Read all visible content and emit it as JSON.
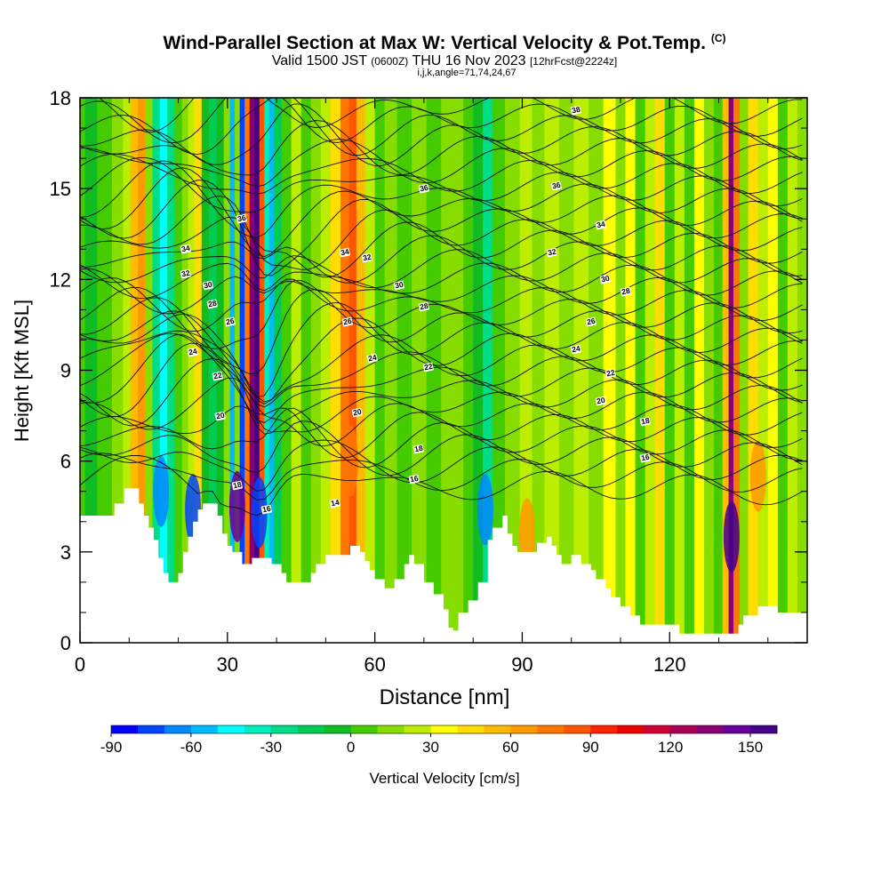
{
  "title": {
    "main": "Wind-Parallel Section at Max W: Vertical Velocity & Pot.Temp.",
    "copyright": "(C)",
    "valid_prefix": "Valid 1500 JST",
    "valid_utc": "(0600Z)",
    "valid_date": "THU 16 Nov 2023",
    "forecast": "[12hrFcst@2224z]",
    "params": "i,j,k,angle=71,74,24,67"
  },
  "chart_data": {
    "type": "heatmap",
    "xlabel": "Distance [nm]",
    "ylabel": "Height [Kft MSL]",
    "xlim": [
      0,
      148
    ],
    "ylim": [
      0,
      18
    ],
    "x_ticks": [
      0,
      30,
      60,
      90,
      120
    ],
    "y_ticks": [
      0,
      3,
      6,
      9,
      12,
      15,
      18
    ],
    "grid": false,
    "colorbar": {
      "label": "Vertical Velocity [cm/s]",
      "range": [
        -90,
        160
      ],
      "tick_values": [
        -90,
        -60,
        -30,
        0,
        30,
        60,
        90,
        120,
        150
      ],
      "tick_labels": [
        "-90",
        "-60",
        "-30",
        "0",
        "30",
        "60",
        "90",
        "120",
        "150"
      ],
      "colors": [
        "#0000ff",
        "#0044ff",
        "#0088ff",
        "#00bbff",
        "#00ffff",
        "#00eebb",
        "#00dd88",
        "#00cc55",
        "#11bb22",
        "#44cc00",
        "#88dd00",
        "#bbee00",
        "#ffff00",
        "#ffdd00",
        "#ffbb00",
        "#ff9900",
        "#ff7700",
        "#ff5500",
        "#ff2200",
        "#ee0000",
        "#cc0033",
        "#aa0055",
        "#880077",
        "#660099",
        "#440088"
      ]
    },
    "terrain_kft": [
      [
        0,
        4.2
      ],
      [
        6,
        4.2
      ],
      [
        7,
        4.6
      ],
      [
        9,
        5.1
      ],
      [
        11,
        5.1
      ],
      [
        12,
        4.6
      ],
      [
        13,
        4.2
      ],
      [
        14,
        3.8
      ],
      [
        15,
        3.4
      ],
      [
        16,
        2.8
      ],
      [
        17,
        2.3
      ],
      [
        18,
        2.0
      ],
      [
        20,
        2.3
      ],
      [
        21,
        3.0
      ],
      [
        22,
        3.5
      ],
      [
        23,
        4.0
      ],
      [
        24,
        4.4
      ],
      [
        25,
        4.6
      ],
      [
        27,
        4.6
      ],
      [
        28,
        4.2
      ],
      [
        29,
        3.6
      ],
      [
        30,
        3.2
      ],
      [
        31,
        3.0
      ],
      [
        33,
        2.6
      ],
      [
        35,
        2.8
      ],
      [
        37,
        2.8
      ],
      [
        39,
        2.6
      ],
      [
        41,
        2.3
      ],
      [
        42,
        2.0
      ],
      [
        46,
        2.0
      ],
      [
        47,
        2.3
      ],
      [
        48,
        2.6
      ],
      [
        50,
        2.9
      ],
      [
        53,
        2.9
      ],
      [
        55,
        3.2
      ],
      [
        57,
        3.0
      ],
      [
        58,
        2.7
      ],
      [
        59,
        2.4
      ],
      [
        60,
        2.1
      ],
      [
        62,
        1.8
      ],
      [
        64,
        2.1
      ],
      [
        66,
        2.6
      ],
      [
        67,
        2.9
      ],
      [
        68,
        2.6
      ],
      [
        70,
        2.0
      ],
      [
        72,
        1.6
      ],
      [
        74,
        1.1
      ],
      [
        75,
        0.5
      ],
      [
        76,
        0.4
      ],
      [
        77,
        1.0
      ],
      [
        79,
        1.4
      ],
      [
        81,
        2.0
      ],
      [
        83,
        3.4
      ],
      [
        84,
        3.8
      ],
      [
        86,
        4.2
      ],
      [
        87,
        3.6
      ],
      [
        88,
        3.2
      ],
      [
        89,
        3.0
      ],
      [
        92,
        3.0
      ],
      [
        93,
        3.3
      ],
      [
        95,
        3.5
      ],
      [
        96,
        3.2
      ],
      [
        97,
        2.9
      ],
      [
        98,
        2.6
      ],
      [
        100,
        2.9
      ],
      [
        102,
        2.6
      ],
      [
        104,
        2.4
      ],
      [
        105,
        2.1
      ],
      [
        107,
        1.8
      ],
      [
        108,
        1.5
      ],
      [
        110,
        1.2
      ],
      [
        112,
        0.9
      ],
      [
        114,
        0.6
      ],
      [
        120,
        0.6
      ],
      [
        122,
        0.3
      ],
      [
        133,
        0.3
      ],
      [
        134,
        0.6
      ],
      [
        135,
        0.9
      ],
      [
        137,
        0.9
      ],
      [
        138,
        1.2
      ],
      [
        141,
        1.2
      ],
      [
        142,
        1.0
      ],
      [
        148,
        1.0
      ]
    ],
    "vertical_velocity_columns_cm_s": [
      [
        0,
        0
      ],
      [
        2,
        -5
      ],
      [
        5,
        0
      ],
      [
        8,
        10
      ],
      [
        9.5,
        20
      ],
      [
        11,
        55
      ],
      [
        12.5,
        60
      ],
      [
        14,
        10
      ],
      [
        15.5,
        -25
      ],
      [
        17,
        -45
      ],
      [
        18.5,
        -30
      ],
      [
        20,
        5
      ],
      [
        21.5,
        15
      ],
      [
        22.5,
        20
      ],
      [
        24,
        40
      ],
      [
        25.5,
        -10
      ],
      [
        27,
        -20
      ],
      [
        28.5,
        -10
      ],
      [
        30,
        10
      ],
      [
        31,
        -55
      ],
      [
        32,
        15
      ],
      [
        33,
        -75
      ],
      [
        34,
        70
      ],
      [
        35,
        135
      ],
      [
        36,
        160
      ],
      [
        37,
        80
      ],
      [
        38,
        -35
      ],
      [
        39,
        -55
      ],
      [
        40,
        -20
      ],
      [
        42,
        5
      ],
      [
        44,
        20
      ],
      [
        46,
        5
      ],
      [
        48,
        10
      ],
      [
        50,
        20
      ],
      [
        52,
        40
      ],
      [
        54,
        70
      ],
      [
        55.5,
        85
      ],
      [
        57,
        55
      ],
      [
        59,
        20
      ],
      [
        61,
        5
      ],
      [
        63,
        15
      ],
      [
        66,
        5
      ],
      [
        69,
        10
      ],
      [
        72,
        5
      ],
      [
        75,
        10
      ],
      [
        77,
        15
      ],
      [
        79,
        5
      ],
      [
        81,
        -10
      ],
      [
        83,
        -25
      ],
      [
        85,
        0
      ],
      [
        88,
        10
      ],
      [
        91,
        25
      ],
      [
        93,
        15
      ],
      [
        96,
        20
      ],
      [
        99,
        10
      ],
      [
        102,
        25
      ],
      [
        105,
        10
      ],
      [
        108,
        30
      ],
      [
        110,
        15
      ],
      [
        112,
        35
      ],
      [
        114,
        5
      ],
      [
        116,
        20
      ],
      [
        118,
        40
      ],
      [
        120,
        5
      ],
      [
        122,
        25
      ],
      [
        124,
        0
      ],
      [
        126,
        30
      ],
      [
        128,
        10
      ],
      [
        130,
        5
      ],
      [
        131.5,
        55
      ],
      [
        132.5,
        130
      ],
      [
        133.5,
        70
      ],
      [
        135,
        15
      ],
      [
        137,
        40
      ],
      [
        139,
        20
      ],
      [
        141,
        30
      ],
      [
        143,
        0
      ],
      [
        145,
        25
      ],
      [
        147,
        15
      ]
    ],
    "low_level_updrafts": [
      {
        "x": 32,
        "z": 4.5,
        "w": 140
      },
      {
        "x": 55,
        "z": 6.0,
        "w": 70
      },
      {
        "x": 91,
        "z": 3.6,
        "w": 60
      },
      {
        "x": 132.6,
        "z": 3.5,
        "w": 150
      },
      {
        "x": 138,
        "z": 5.5,
        "w": 60
      }
    ],
    "low_level_downdrafts": [
      {
        "x": 16.5,
        "z": 5.0,
        "w": -70
      },
      {
        "x": 23,
        "z": 4.4,
        "w": -80
      },
      {
        "x": 36.5,
        "z": 4.3,
        "w": -75
      },
      {
        "x": 82.5,
        "z": 4.4,
        "w": -65
      }
    ],
    "potential_temperature_contours": {
      "units": "C",
      "levels": [
        14,
        16,
        18,
        20,
        22,
        24,
        26,
        28,
        30,
        32,
        34,
        36,
        38
      ],
      "labels": [
        {
          "text": "34",
          "x": 21.5,
          "y": 13.0
        },
        {
          "text": "32",
          "x": 21.5,
          "y": 12.2
        },
        {
          "text": "30",
          "x": 26,
          "y": 11.8
        },
        {
          "text": "28",
          "x": 27,
          "y": 11.2
        },
        {
          "text": "26",
          "x": 30.5,
          "y": 10.6
        },
        {
          "text": "24",
          "x": 23,
          "y": 9.6
        },
        {
          "text": "22",
          "x": 28,
          "y": 8.8
        },
        {
          "text": "20",
          "x": 28.5,
          "y": 7.5
        },
        {
          "text": "18",
          "x": 32,
          "y": 5.2
        },
        {
          "text": "16",
          "x": 38,
          "y": 4.4
        },
        {
          "text": "36",
          "x": 33,
          "y": 14.0
        },
        {
          "text": "34",
          "x": 54,
          "y": 12.9
        },
        {
          "text": "32",
          "x": 58.5,
          "y": 12.7
        },
        {
          "text": "30",
          "x": 65,
          "y": 11.8
        },
        {
          "text": "28",
          "x": 70,
          "y": 11.1
        },
        {
          "text": "26",
          "x": 54.5,
          "y": 10.6
        },
        {
          "text": "24",
          "x": 59.5,
          "y": 9.4
        },
        {
          "text": "22",
          "x": 71,
          "y": 9.1
        },
        {
          "text": "20",
          "x": 56.5,
          "y": 7.6
        },
        {
          "text": "18",
          "x": 69,
          "y": 6.4
        },
        {
          "text": "16",
          "x": 68,
          "y": 5.4
        },
        {
          "text": "14",
          "x": 52,
          "y": 4.6
        },
        {
          "text": "36",
          "x": 70,
          "y": 15.0
        },
        {
          "text": "38",
          "x": 101,
          "y": 17.6
        },
        {
          "text": "36",
          "x": 97,
          "y": 15.1
        },
        {
          "text": "34",
          "x": 106,
          "y": 13.8
        },
        {
          "text": "32",
          "x": 96,
          "y": 12.9
        },
        {
          "text": "30",
          "x": 107,
          "y": 12.0
        },
        {
          "text": "28",
          "x": 111,
          "y": 11.6
        },
        {
          "text": "26",
          "x": 104,
          "y": 10.6
        },
        {
          "text": "24",
          "x": 101,
          "y": 9.7
        },
        {
          "text": "22",
          "x": 108,
          "y": 8.9
        },
        {
          "text": "20",
          "x": 106,
          "y": 8.0
        },
        {
          "text": "18",
          "x": 115,
          "y": 7.3
        },
        {
          "text": "16",
          "x": 115,
          "y": 6.1
        }
      ]
    }
  }
}
